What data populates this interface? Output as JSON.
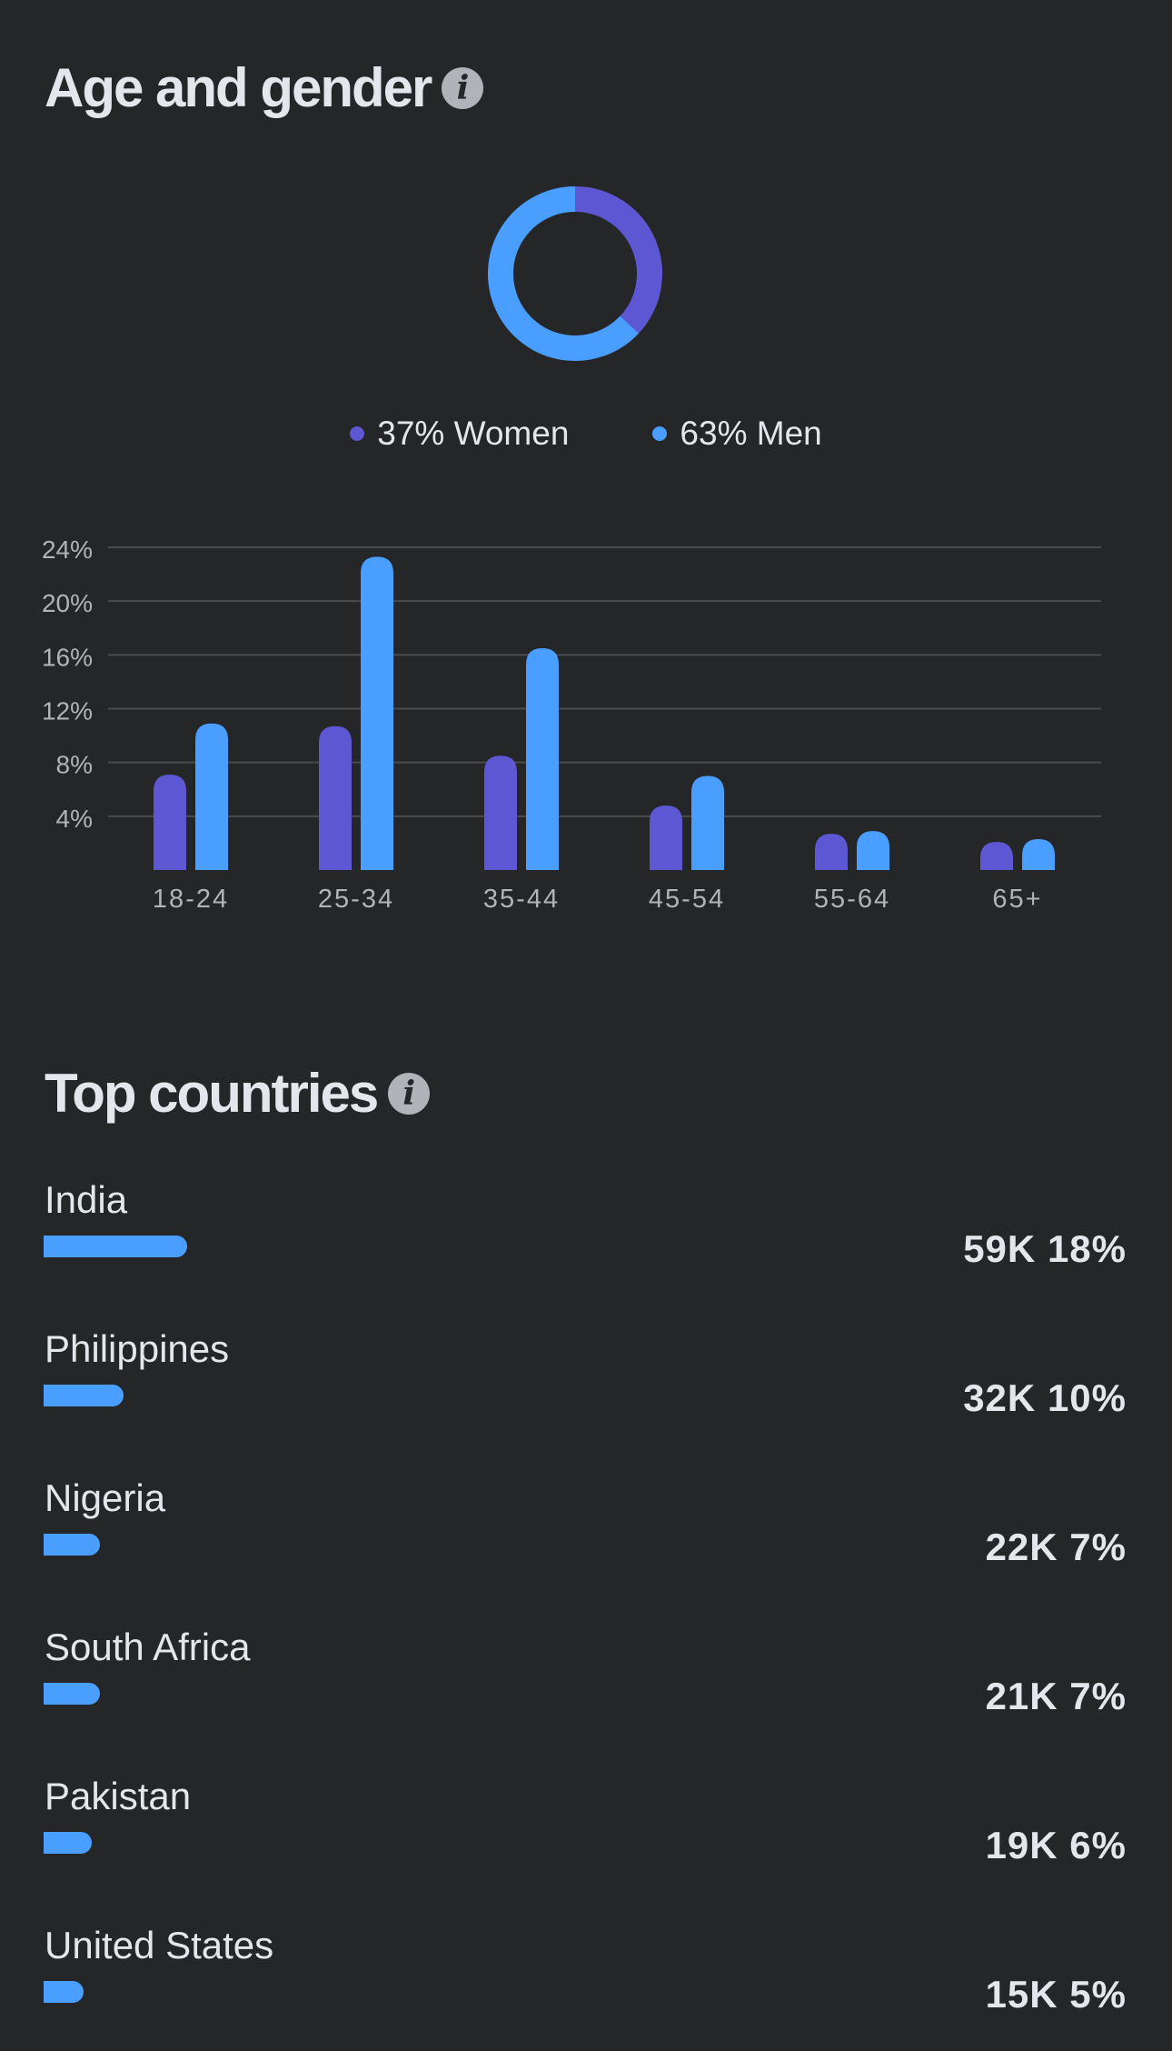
{
  "age_gender": {
    "title": "Age and gender",
    "info_icon": "info-icon",
    "colors": {
      "women": "#5d57d3",
      "men": "#4a9eff"
    },
    "legend": [
      {
        "label": "37% Women",
        "value": 37,
        "color": "#5d57d3"
      },
      {
        "label": "63% Men",
        "value": 63,
        "color": "#4a9eff"
      }
    ]
  },
  "chart_data": [
    {
      "type": "pie",
      "style": "donut",
      "categories": [
        "Women",
        "Men"
      ],
      "values": [
        37,
        63
      ],
      "colors": [
        "#5d57d3",
        "#4a9eff"
      ]
    },
    {
      "type": "bar",
      "categories": [
        "18-24",
        "25-34",
        "35-44",
        "45-54",
        "55-64",
        "65+"
      ],
      "series": [
        {
          "name": "Women",
          "color": "#5d57d3",
          "values": [
            7.1,
            10.7,
            8.5,
            4.8,
            2.7,
            2.1
          ]
        },
        {
          "name": "Men",
          "color": "#4a9eff",
          "values": [
            10.9,
            23.3,
            16.5,
            7.0,
            2.9,
            2.3
          ]
        }
      ],
      "yticks": [
        "4%",
        "8%",
        "12%",
        "16%",
        "20%",
        "24%"
      ],
      "ylim": [
        0,
        24
      ],
      "grid": true
    }
  ],
  "top_countries": {
    "title": "Top countries",
    "info_icon": "info-icon",
    "bar_color": "#4a9eff",
    "items": [
      {
        "name": "India",
        "count": "59K",
        "percent": "18%",
        "value": 18
      },
      {
        "name": "Philippines",
        "count": "32K",
        "percent": "10%",
        "value": 10
      },
      {
        "name": "Nigeria",
        "count": "22K",
        "percent": "7%",
        "value": 7
      },
      {
        "name": "South Africa",
        "count": "21K",
        "percent": "7%",
        "value": 7
      },
      {
        "name": "Pakistan",
        "count": "19K",
        "percent": "6%",
        "value": 6
      },
      {
        "name": "United States",
        "count": "15K",
        "percent": "5%",
        "value": 5
      }
    ]
  }
}
